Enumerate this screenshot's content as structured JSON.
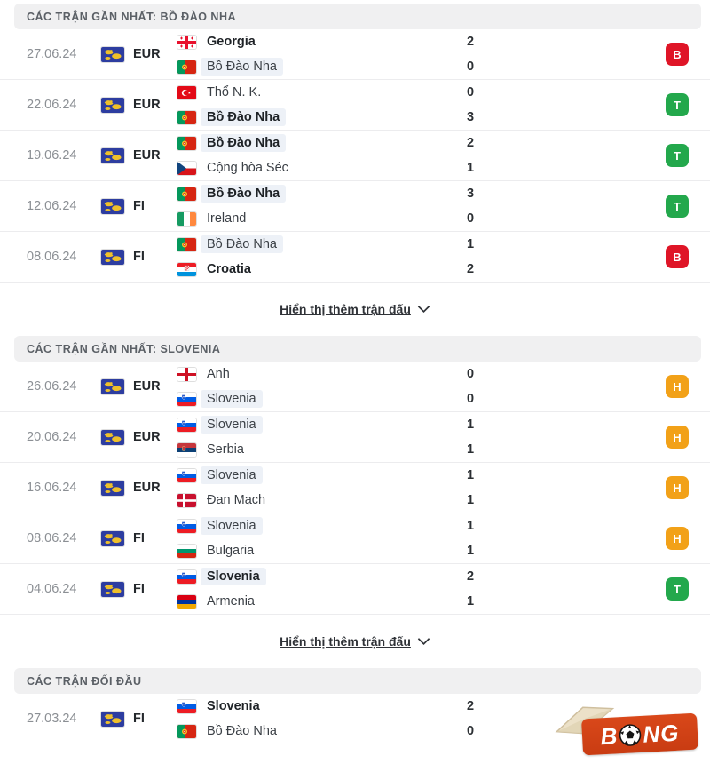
{
  "colors": {
    "B": "#df1527",
    "T": "#23a84c",
    "H": "#f2a118",
    "header_bg": "#f0f0f1",
    "highlight": "#edf1f7",
    "logo_red": "#d9481a"
  },
  "icons": {
    "chevron": "chevron-down-icon",
    "ball": "soccer-ball-icon",
    "hat": "conical-hat-icon"
  },
  "sections": [
    {
      "header": "CÁC TRẬN GẦN NHẤT: BỒ ĐÀO NHA",
      "show_more": "Hiển thị thêm trận đấu",
      "matches": [
        {
          "date": "27.06.24",
          "comp": "EUR",
          "comp_flag": "world",
          "home": {
            "name": "Georgia",
            "flag": "ge",
            "score": "2",
            "bold": true,
            "highlight": false
          },
          "away": {
            "name": "Bồ Đào Nha",
            "flag": "pt",
            "score": "0",
            "bold": false,
            "highlight": true
          },
          "result": "B"
        },
        {
          "date": "22.06.24",
          "comp": "EUR",
          "comp_flag": "world",
          "home": {
            "name": "Thổ N. K.",
            "flag": "tr",
            "score": "0",
            "bold": false,
            "highlight": false
          },
          "away": {
            "name": "Bồ Đào Nha",
            "flag": "pt",
            "score": "3",
            "bold": true,
            "highlight": true
          },
          "result": "T"
        },
        {
          "date": "19.06.24",
          "comp": "EUR",
          "comp_flag": "world",
          "home": {
            "name": "Bồ Đào Nha",
            "flag": "pt",
            "score": "2",
            "bold": true,
            "highlight": true
          },
          "away": {
            "name": "Cộng hòa Séc",
            "flag": "cz",
            "score": "1",
            "bold": false,
            "highlight": false
          },
          "result": "T"
        },
        {
          "date": "12.06.24",
          "comp": "FI",
          "comp_flag": "world",
          "home": {
            "name": "Bồ Đào Nha",
            "flag": "pt",
            "score": "3",
            "bold": true,
            "highlight": true
          },
          "away": {
            "name": "Ireland",
            "flag": "ie",
            "score": "0",
            "bold": false,
            "highlight": false
          },
          "result": "T"
        },
        {
          "date": "08.06.24",
          "comp": "FI",
          "comp_flag": "world",
          "home": {
            "name": "Bồ Đào Nha",
            "flag": "pt",
            "score": "1",
            "bold": false,
            "highlight": true
          },
          "away": {
            "name": "Croatia",
            "flag": "hr",
            "score": "2",
            "bold": true,
            "highlight": false
          },
          "result": "B"
        }
      ]
    },
    {
      "header": "CÁC TRẬN GẦN NHẤT: SLOVENIA",
      "show_more": "Hiển thị thêm trận đấu",
      "matches": [
        {
          "date": "26.06.24",
          "comp": "EUR",
          "comp_flag": "world",
          "home": {
            "name": "Anh",
            "flag": "gb-eng",
            "score": "0",
            "bold": false,
            "highlight": false
          },
          "away": {
            "name": "Slovenia",
            "flag": "si",
            "score": "0",
            "bold": false,
            "highlight": true
          },
          "result": "H"
        },
        {
          "date": "20.06.24",
          "comp": "EUR",
          "comp_flag": "world",
          "home": {
            "name": "Slovenia",
            "flag": "si",
            "score": "1",
            "bold": false,
            "highlight": true
          },
          "away": {
            "name": "Serbia",
            "flag": "rs",
            "score": "1",
            "bold": false,
            "highlight": false
          },
          "result": "H"
        },
        {
          "date": "16.06.24",
          "comp": "EUR",
          "comp_flag": "world",
          "home": {
            "name": "Slovenia",
            "flag": "si",
            "score": "1",
            "bold": false,
            "highlight": true
          },
          "away": {
            "name": "Đan Mạch",
            "flag": "dk",
            "score": "1",
            "bold": false,
            "highlight": false
          },
          "result": "H"
        },
        {
          "date": "08.06.24",
          "comp": "FI",
          "comp_flag": "world",
          "home": {
            "name": "Slovenia",
            "flag": "si",
            "score": "1",
            "bold": false,
            "highlight": true
          },
          "away": {
            "name": "Bulgaria",
            "flag": "bg",
            "score": "1",
            "bold": false,
            "highlight": false
          },
          "result": "H"
        },
        {
          "date": "04.06.24",
          "comp": "FI",
          "comp_flag": "world",
          "home": {
            "name": "Slovenia",
            "flag": "si",
            "score": "2",
            "bold": true,
            "highlight": true
          },
          "away": {
            "name": "Armenia",
            "flag": "am",
            "score": "1",
            "bold": false,
            "highlight": false
          },
          "result": "T"
        }
      ]
    },
    {
      "header": "CÁC TRẬN ĐỐI ĐẦU",
      "show_more": null,
      "matches": [
        {
          "date": "27.03.24",
          "comp": "FI",
          "comp_flag": "world",
          "home": {
            "name": "Slovenia",
            "flag": "si",
            "score": "2",
            "bold": true,
            "highlight": false
          },
          "away": {
            "name": "Bồ Đào Nha",
            "flag": "pt",
            "score": "0",
            "bold": false,
            "highlight": false
          },
          "result": null
        }
      ]
    }
  ],
  "watermark": {
    "prefix": "B",
    "suffix": "NG"
  }
}
